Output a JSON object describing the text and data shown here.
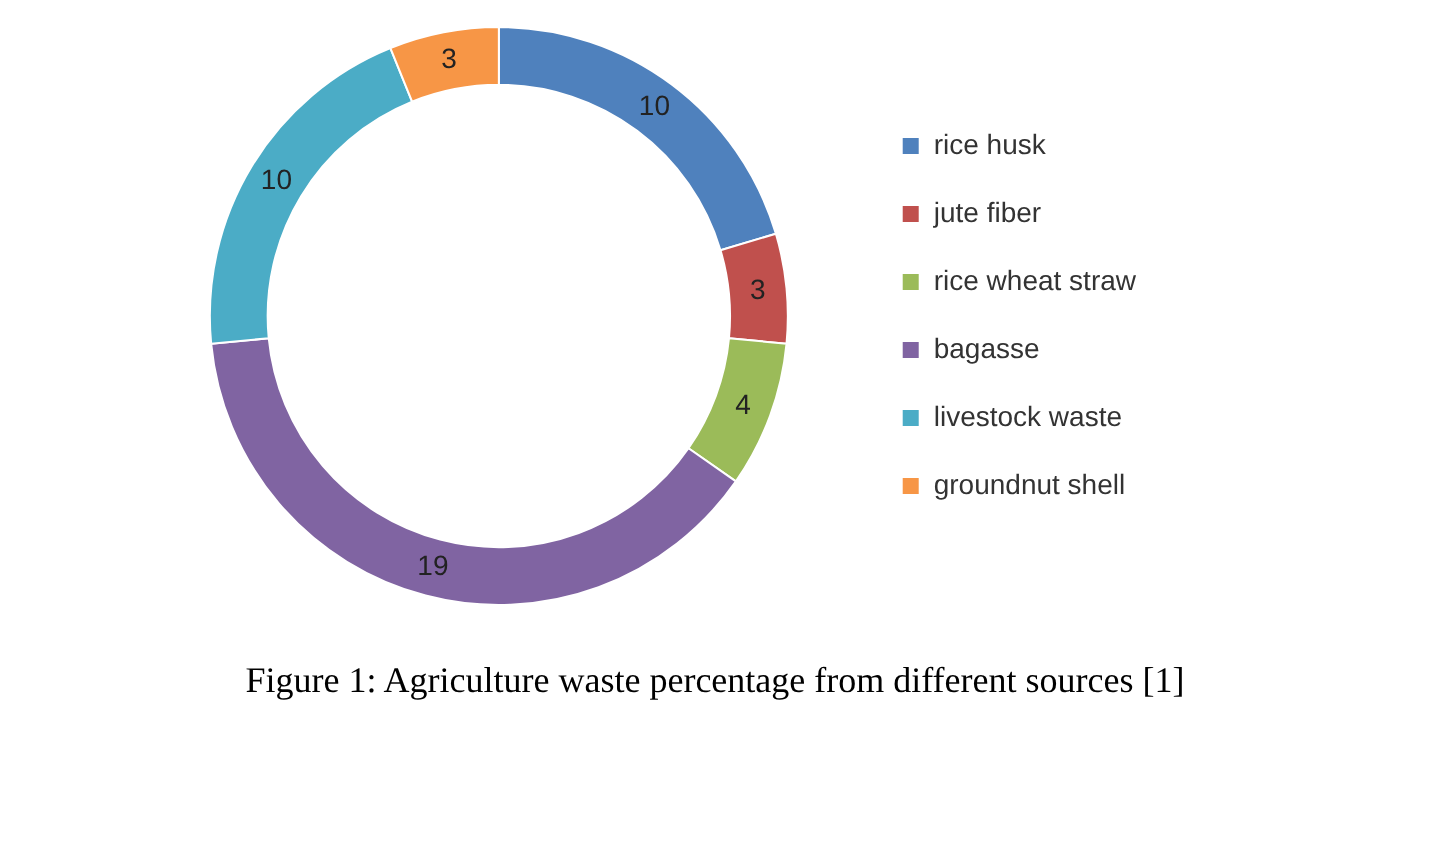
{
  "chart_data": {
    "type": "donut",
    "categories": [
      "rice husk",
      "jute fiber",
      "rice wheat straw",
      "bagasse",
      "livestock waste",
      "groundnut shell"
    ],
    "values": [
      10,
      3,
      4,
      19,
      10,
      3
    ],
    "colors": [
      "#4f81bd",
      "#c0504d",
      "#9bbb59",
      "#8064a2",
      "#4bacc6",
      "#f79646"
    ],
    "data_labels": true,
    "legend": "right",
    "annotations": [
      "Figure 1: Agriculture waste percentage from different sources [1]"
    ]
  }
}
